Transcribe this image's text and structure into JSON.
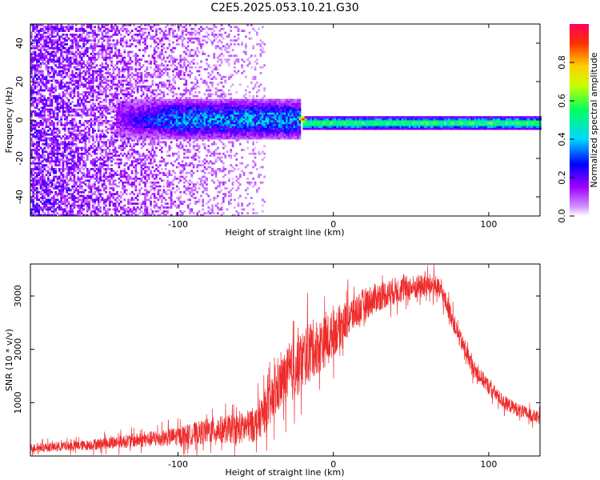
{
  "window_title": "C2E5.2025.053.10.21.G30",
  "chart_data": [
    {
      "type": "heatmap",
      "xlabel": "Height of straight line (km)",
      "ylabel": "Frequency (Hz)",
      "xlim": [
        -195,
        133
      ],
      "ylim": [
        -50,
        50
      ],
      "x_ticks": [
        -100,
        0,
        100
      ],
      "y_ticks": [
        -40,
        -20,
        0,
        20,
        40
      ],
      "colorbar": {
        "label": "Normalized spectral amplitude",
        "range": [
          0,
          1
        ],
        "ticks": [
          0.0,
          0.2,
          0.4,
          0.6,
          0.8
        ],
        "colormap": [
          "#ffffff",
          "#a000ff",
          "#0000ff",
          "#00d8ff",
          "#00ff60",
          "#c8ff00",
          "#ffd000",
          "#ff3000",
          "#ff0060"
        ]
      },
      "features": [
        {
          "name": "scattered_noise",
          "x_range": [
            -195,
            -45
          ],
          "freq_range": [
            -50,
            50
          ],
          "amplitude": 0.1
        },
        {
          "name": "broad_core",
          "x_range": [
            -140,
            -22
          ],
          "center_freq": 0,
          "half_width_hz": 6,
          "amplitude": 0.35
        },
        {
          "name": "narrow_line",
          "x_range": [
            -20,
            133
          ],
          "center_freq": -2,
          "half_width_hz": 2,
          "amplitude": 0.6
        },
        {
          "name": "peak",
          "x": -20,
          "freq": 0,
          "amplitude": 0.95
        }
      ]
    },
    {
      "type": "line",
      "xlabel": "Height of straight line (km)",
      "ylabel": "SNR (10 * v/v)",
      "xlim": [
        -195,
        133
      ],
      "ylim": [
        0,
        3600
      ],
      "x_ticks": [
        -100,
        0,
        100
      ],
      "y_ticks": [
        1000,
        2000,
        3000
      ],
      "color": "#ee2a2a",
      "series": [
        {
          "x": [
            -195,
            -180,
            -160,
            -140,
            -120,
            -100,
            -80,
            -70,
            -60,
            -50,
            -45,
            -40,
            -35,
            -30,
            -25,
            -20,
            -15,
            -10,
            -5,
            0,
            10,
            20,
            30,
            40,
            50,
            60,
            65,
            70,
            75,
            80,
            90,
            100,
            110,
            120,
            133
          ],
          "y": [
            150,
            170,
            200,
            260,
            310,
            370,
            470,
            500,
            510,
            600,
            800,
            1000,
            1300,
            1500,
            1600,
            1800,
            2000,
            2050,
            2150,
            2300,
            2600,
            2850,
            3000,
            3100,
            3150,
            3200,
            3200,
            3050,
            2700,
            2300,
            1650,
            1300,
            1000,
            850,
            700
          ],
          "noise_amplitude": [
            100,
            110,
            120,
            150,
            180,
            220,
            300,
            330,
            360,
            420,
            500,
            550,
            600,
            650,
            700,
            720,
            700,
            650,
            600,
            550,
            450,
            380,
            340,
            320,
            300,
            280,
            260,
            240,
            230,
            220,
            200,
            180,
            170,
            160,
            150
          ]
        }
      ]
    }
  ]
}
